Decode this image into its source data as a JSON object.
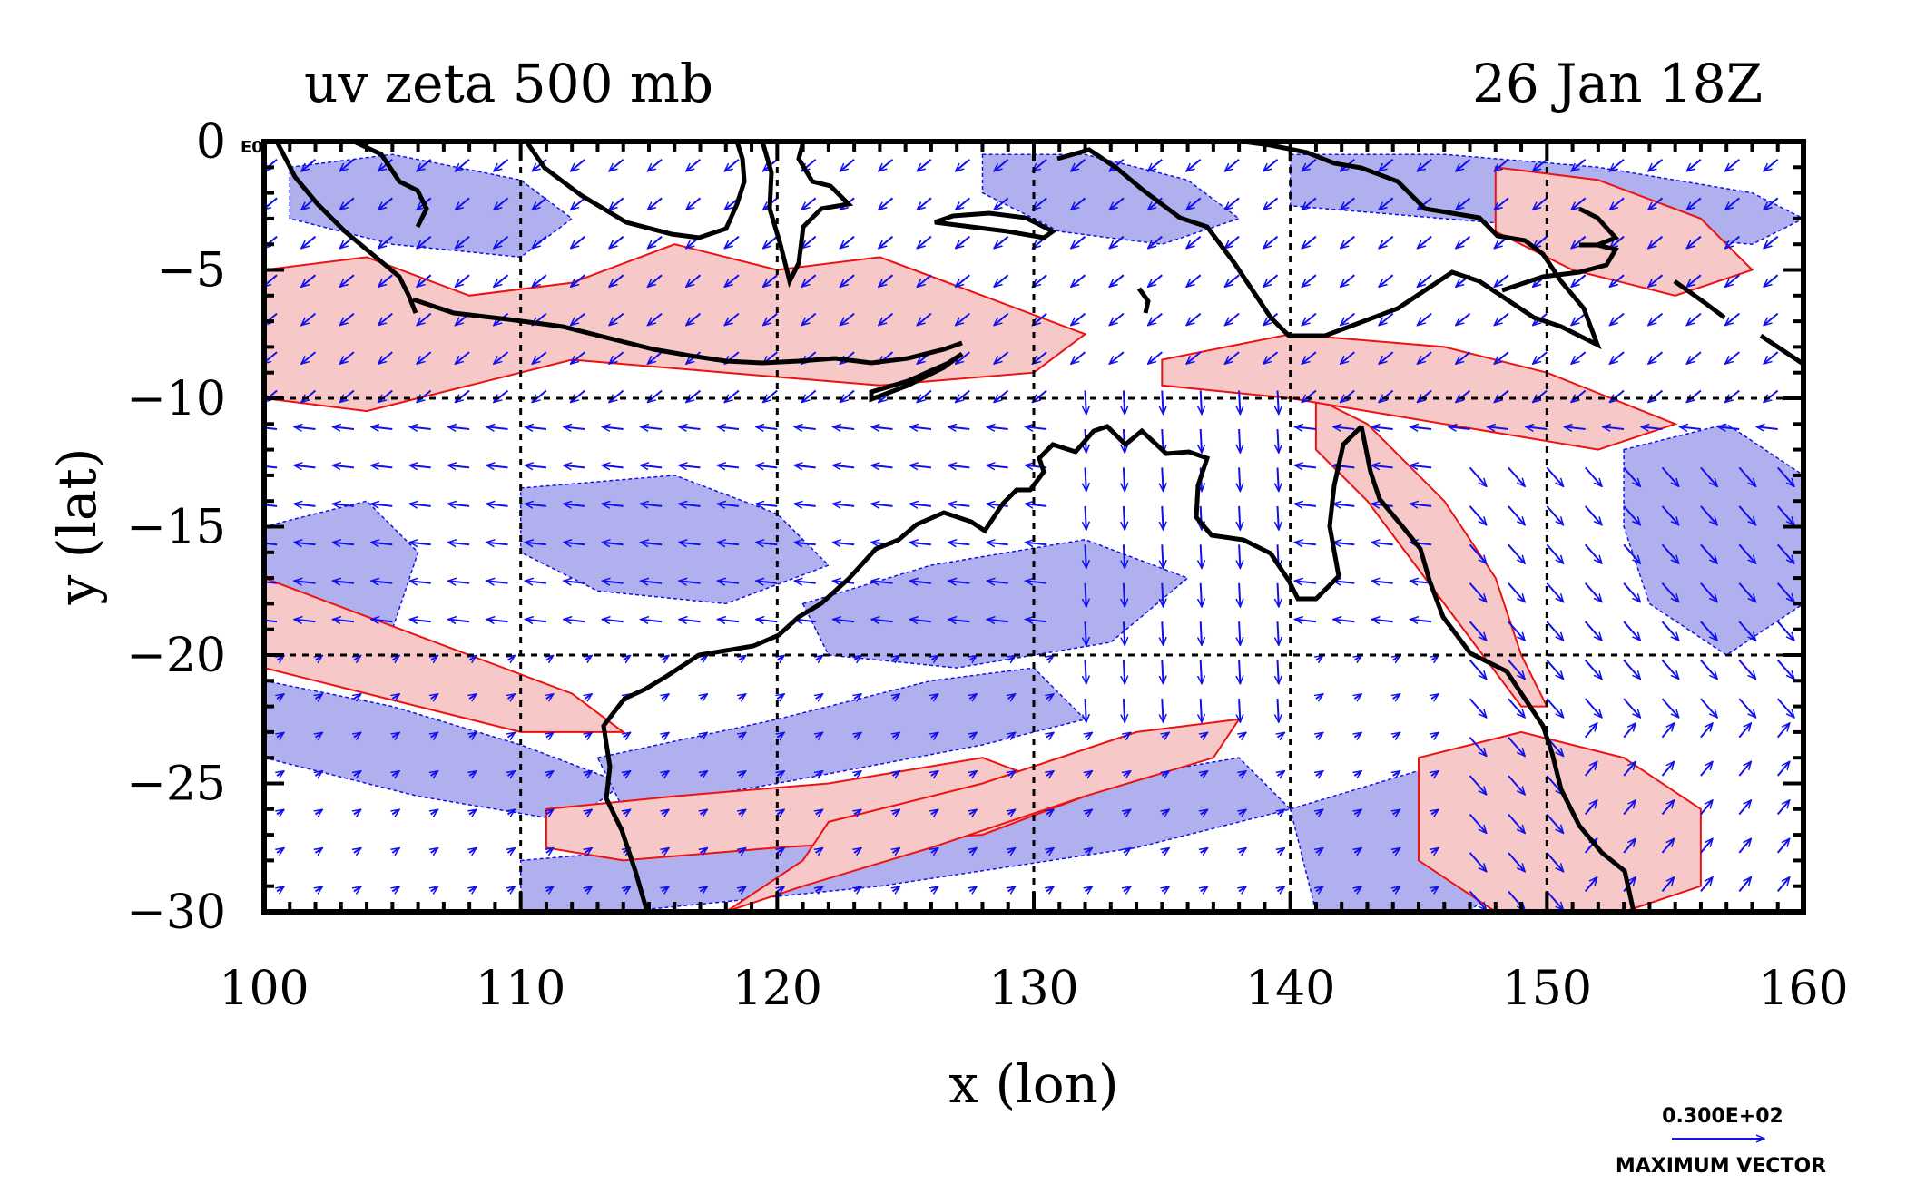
{
  "chart_data": {
    "type": "heatmap",
    "title_left": "uv zeta 500 mb",
    "title_right": "26 Jan 18Z",
    "xlabel": "x (lon)",
    "ylabel": "y (lat)",
    "xlim": [
      100,
      160
    ],
    "ylim": [
      -30,
      0
    ],
    "x_ticks": [
      100,
      110,
      120,
      130,
      140,
      150,
      160
    ],
    "y_ticks": [
      0,
      -5,
      -10,
      -15,
      -20,
      -25,
      -30
    ],
    "x_tick_labels": [
      "100",
      "110",
      "120",
      "130",
      "140",
      "150",
      "160"
    ],
    "y_tick_labels": [
      "0",
      "−5",
      "−10",
      "−15",
      "−20",
      "−25",
      "−30"
    ],
    "gridlines_x": [
      110,
      120,
      130,
      140,
      150
    ],
    "gridlines_y": [
      -10,
      -20
    ],
    "corner_label": "E0",
    "vector_key": {
      "magnitude_label": "0.300E+02",
      "caption": "MAXIMUM VECTOR"
    },
    "colors": {
      "positive_fill": "#f6c8c8",
      "positive_contour": "#ee1111",
      "negative_fill": "#b0b0ee",
      "vector": "#1111ee",
      "coastline": "#000000"
    },
    "shaded_regions": {
      "positive": [
        [
          [
            100,
            -5
          ],
          [
            104,
            -4.5
          ],
          [
            108,
            -6
          ],
          [
            112,
            -5.5
          ],
          [
            116,
            -4
          ],
          [
            120,
            -5
          ],
          [
            124,
            -4.5
          ],
          [
            128,
            -6
          ],
          [
            132,
            -7.5
          ],
          [
            130,
            -9
          ],
          [
            124,
            -9.5
          ],
          [
            118,
            -9
          ],
          [
            112,
            -8.5
          ],
          [
            108,
            -9.5
          ],
          [
            104,
            -10.5
          ],
          [
            100,
            -10
          ]
        ],
        [
          [
            100,
            -17
          ],
          [
            104,
            -18.5
          ],
          [
            108,
            -20
          ],
          [
            112,
            -21.5
          ],
          [
            114,
            -23
          ],
          [
            110,
            -23
          ],
          [
            106,
            -22
          ],
          [
            102,
            -21
          ],
          [
            100,
            -20.5
          ]
        ],
        [
          [
            111,
            -26
          ],
          [
            116,
            -25.5
          ],
          [
            122,
            -25
          ],
          [
            128,
            -24
          ],
          [
            132,
            -25.5
          ],
          [
            128,
            -27
          ],
          [
            120,
            -27.5
          ],
          [
            114,
            -28
          ],
          [
            111,
            -27.5
          ]
        ],
        [
          [
            122,
            -26.5
          ],
          [
            128,
            -25
          ],
          [
            134,
            -23
          ],
          [
            138,
            -22.5
          ],
          [
            137,
            -24
          ],
          [
            132,
            -25.5
          ],
          [
            126,
            -27.5
          ],
          [
            121,
            -29
          ],
          [
            118,
            -30
          ],
          [
            121,
            -28
          ]
        ],
        [
          [
            141,
            -10
          ],
          [
            143,
            -11
          ],
          [
            146,
            -14
          ],
          [
            148,
            -17
          ],
          [
            149,
            -20
          ],
          [
            150,
            -22
          ],
          [
            149,
            -22
          ],
          [
            146,
            -18
          ],
          [
            143,
            -14
          ],
          [
            141,
            -12
          ]
        ],
        [
          [
            145,
            -24
          ],
          [
            149,
            -23
          ],
          [
            153,
            -24
          ],
          [
            156,
            -26
          ],
          [
            156,
            -29
          ],
          [
            153,
            -30
          ],
          [
            148,
            -30
          ],
          [
            145,
            -28
          ]
        ],
        [
          [
            148,
            -1
          ],
          [
            152,
            -1.5
          ],
          [
            156,
            -3
          ],
          [
            158,
            -5
          ],
          [
            155,
            -6
          ],
          [
            151,
            -5
          ],
          [
            148,
            -3.5
          ]
        ],
        [
          [
            135,
            -8.5
          ],
          [
            140,
            -7.5
          ],
          [
            146,
            -8
          ],
          [
            150,
            -9
          ],
          [
            155,
            -11
          ],
          [
            152,
            -12
          ],
          [
            146,
            -11
          ],
          [
            140,
            -10
          ],
          [
            135,
            -9.5
          ]
        ]
      ],
      "negative": [
        [
          [
            101,
            -1
          ],
          [
            105,
            -0.5
          ],
          [
            110,
            -1.5
          ],
          [
            112,
            -3
          ],
          [
            110,
            -4.5
          ],
          [
            105,
            -4
          ],
          [
            101,
            -3
          ]
        ],
        [
          [
            140,
            -0.5
          ],
          [
            146,
            -0.5
          ],
          [
            152,
            -1
          ],
          [
            158,
            -2
          ],
          [
            160,
            -3
          ],
          [
            158,
            -4
          ],
          [
            152,
            -3.5
          ],
          [
            146,
            -3
          ],
          [
            140,
            -2.5
          ]
        ],
        [
          [
            100,
            -15
          ],
          [
            104,
            -14
          ],
          [
            106,
            -16
          ],
          [
            105,
            -19
          ],
          [
            102,
            -19.5
          ],
          [
            100,
            -18
          ]
        ],
        [
          [
            110,
            -13.5
          ],
          [
            116,
            -13
          ],
          [
            120,
            -14.5
          ],
          [
            122,
            -16.5
          ],
          [
            118,
            -18
          ],
          [
            113,
            -17.5
          ],
          [
            110,
            -16
          ]
        ],
        [
          [
            100,
            -21
          ],
          [
            105,
            -22
          ],
          [
            110,
            -23.5
          ],
          [
            114,
            -25
          ],
          [
            112,
            -26.5
          ],
          [
            106,
            -25.5
          ],
          [
            100,
            -24
          ]
        ],
        [
          [
            113,
            -24
          ],
          [
            120,
            -22.5
          ],
          [
            126,
            -21
          ],
          [
            130,
            -20.5
          ],
          [
            132,
            -22.5
          ],
          [
            128,
            -23.5
          ],
          [
            120,
            -25
          ],
          [
            114,
            -26
          ]
        ],
        [
          [
            110,
            -28
          ],
          [
            116,
            -27.5
          ],
          [
            124,
            -26.5
          ],
          [
            132,
            -25
          ],
          [
            138,
            -24
          ],
          [
            140,
            -26
          ],
          [
            134,
            -27.5
          ],
          [
            124,
            -29
          ],
          [
            114,
            -30
          ],
          [
            110,
            -30
          ]
        ],
        [
          [
            140,
            -26
          ],
          [
            145,
            -24.5
          ],
          [
            148,
            -25
          ],
          [
            149,
            -28
          ],
          [
            147,
            -30
          ],
          [
            141,
            -30
          ]
        ],
        [
          [
            153,
            -12
          ],
          [
            157,
            -11
          ],
          [
            160,
            -13
          ],
          [
            160,
            -18
          ],
          [
            157,
            -20
          ],
          [
            154,
            -18
          ],
          [
            153,
            -15
          ]
        ],
        [
          [
            121,
            -18
          ],
          [
            126,
            -16.5
          ],
          [
            132,
            -15.5
          ],
          [
            136,
            -17
          ],
          [
            133,
            -19.5
          ],
          [
            127,
            -20.5
          ],
          [
            122,
            -20
          ]
        ],
        [
          [
            128,
            -0.5
          ],
          [
            132,
            -0.5
          ],
          [
            136,
            -1.5
          ],
          [
            138,
            -3
          ],
          [
            135,
            -4
          ],
          [
            131,
            -3.5
          ],
          [
            128,
            -2
          ]
        ]
      ]
    }
  }
}
